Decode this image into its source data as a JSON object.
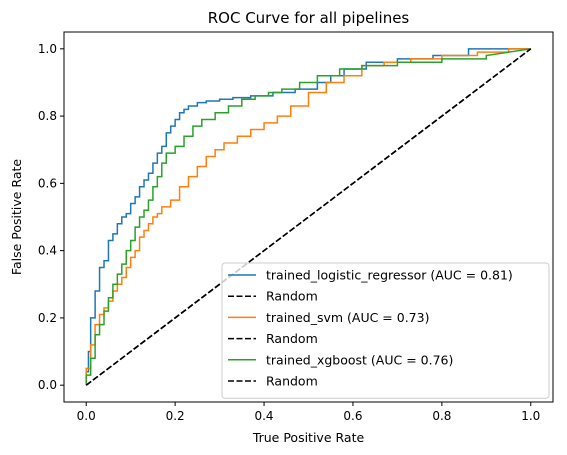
{
  "chart_data": {
    "type": "line",
    "title": "ROC Curve for all pipelines",
    "xlabel": "True Positive Rate",
    "ylabel": "False Positive Rate",
    "xlim": [
      -0.05,
      1.05
    ],
    "ylim": [
      -0.05,
      1.05
    ],
    "xticks": [
      "0.0",
      "0.2",
      "0.4",
      "0.6",
      "0.8",
      "1.0"
    ],
    "yticks": [
      "0.0",
      "0.2",
      "0.4",
      "0.6",
      "0.8",
      "1.0"
    ],
    "grid": false,
    "legend_position": "lower-right",
    "series": [
      {
        "name": "trained_logistic_regressor (AUC =  0.81)",
        "color": "#1f77b4",
        "style": "solid",
        "x": [
          0.0,
          0.0,
          0.005,
          0.005,
          0.01,
          0.01,
          0.02,
          0.02,
          0.03,
          0.03,
          0.04,
          0.04,
          0.05,
          0.05,
          0.06,
          0.06,
          0.07,
          0.07,
          0.08,
          0.08,
          0.09,
          0.09,
          0.1,
          0.1,
          0.11,
          0.11,
          0.12,
          0.12,
          0.13,
          0.13,
          0.14,
          0.14,
          0.15,
          0.15,
          0.16,
          0.16,
          0.17,
          0.17,
          0.18,
          0.18,
          0.19,
          0.19,
          0.2,
          0.2,
          0.21,
          0.21,
          0.22,
          0.22,
          0.23,
          0.23,
          0.25,
          0.25,
          0.27,
          0.27,
          0.3,
          0.3,
          0.33,
          0.33,
          0.37,
          0.37,
          0.42,
          0.42,
          0.47,
          0.47,
          0.52,
          0.52,
          0.55,
          0.55,
          0.58,
          0.58,
          0.63,
          0.63,
          0.7,
          0.7,
          0.78,
          0.78,
          0.86,
          0.86,
          0.92,
          0.92,
          1.0
        ],
        "y": [
          0.0,
          0.04,
          0.04,
          0.1,
          0.1,
          0.2,
          0.2,
          0.28,
          0.28,
          0.35,
          0.35,
          0.37,
          0.37,
          0.43,
          0.43,
          0.45,
          0.45,
          0.48,
          0.48,
          0.5,
          0.5,
          0.51,
          0.51,
          0.54,
          0.54,
          0.56,
          0.56,
          0.59,
          0.59,
          0.61,
          0.61,
          0.63,
          0.63,
          0.66,
          0.66,
          0.69,
          0.69,
          0.71,
          0.71,
          0.75,
          0.75,
          0.77,
          0.77,
          0.79,
          0.79,
          0.81,
          0.81,
          0.82,
          0.82,
          0.83,
          0.83,
          0.84,
          0.84,
          0.845,
          0.845,
          0.85,
          0.85,
          0.855,
          0.855,
          0.86,
          0.86,
          0.87,
          0.87,
          0.88,
          0.88,
          0.9,
          0.9,
          0.92,
          0.92,
          0.94,
          0.94,
          0.96,
          0.96,
          0.97,
          0.97,
          0.98,
          0.98,
          1.0,
          1.0,
          1.0,
          1.0
        ]
      },
      {
        "name": "Random",
        "color": "#000000",
        "style": "dashed",
        "x": [
          0,
          1
        ],
        "y": [
          0,
          1
        ]
      },
      {
        "name": "trained_svm (AUC =  0.73)",
        "color": "#ff7f0e",
        "style": "solid",
        "x": [
          0.0,
          0.0,
          0.01,
          0.01,
          0.02,
          0.02,
          0.03,
          0.03,
          0.04,
          0.04,
          0.05,
          0.05,
          0.06,
          0.06,
          0.07,
          0.07,
          0.08,
          0.08,
          0.09,
          0.09,
          0.1,
          0.1,
          0.11,
          0.11,
          0.12,
          0.12,
          0.13,
          0.13,
          0.14,
          0.14,
          0.15,
          0.15,
          0.16,
          0.16,
          0.17,
          0.17,
          0.19,
          0.19,
          0.21,
          0.21,
          0.23,
          0.23,
          0.25,
          0.25,
          0.27,
          0.27,
          0.29,
          0.29,
          0.31,
          0.31,
          0.34,
          0.34,
          0.37,
          0.37,
          0.4,
          0.4,
          0.43,
          0.43,
          0.46,
          0.46,
          0.5,
          0.5,
          0.54,
          0.54,
          0.58,
          0.58,
          0.62,
          0.62,
          0.67,
          0.67,
          0.73,
          0.73,
          0.8,
          0.8,
          0.88,
          0.88,
          0.95,
          0.95,
          1.0
        ],
        "y": [
          0.0,
          0.05,
          0.05,
          0.12,
          0.12,
          0.18,
          0.18,
          0.21,
          0.21,
          0.23,
          0.23,
          0.25,
          0.25,
          0.28,
          0.28,
          0.3,
          0.3,
          0.32,
          0.32,
          0.35,
          0.35,
          0.38,
          0.38,
          0.4,
          0.4,
          0.44,
          0.44,
          0.46,
          0.46,
          0.48,
          0.48,
          0.5,
          0.5,
          0.51,
          0.51,
          0.53,
          0.53,
          0.55,
          0.55,
          0.59,
          0.59,
          0.62,
          0.62,
          0.65,
          0.65,
          0.68,
          0.68,
          0.7,
          0.7,
          0.72,
          0.72,
          0.74,
          0.74,
          0.76,
          0.76,
          0.78,
          0.78,
          0.8,
          0.8,
          0.83,
          0.83,
          0.87,
          0.87,
          0.9,
          0.9,
          0.92,
          0.92,
          0.95,
          0.95,
          0.96,
          0.96,
          0.97,
          0.97,
          0.98,
          0.98,
          0.99,
          0.99,
          1.0,
          1.0
        ]
      },
      {
        "name": "Random",
        "color": "#000000",
        "style": "dashed",
        "x": [
          0,
          1
        ],
        "y": [
          0,
          1
        ]
      },
      {
        "name": "trained_xgboost (AUC =  0.76)",
        "color": "#2ca02c",
        "style": "solid",
        "x": [
          0.0,
          0.0,
          0.01,
          0.01,
          0.02,
          0.02,
          0.03,
          0.03,
          0.04,
          0.04,
          0.05,
          0.05,
          0.06,
          0.06,
          0.07,
          0.07,
          0.08,
          0.08,
          0.09,
          0.09,
          0.1,
          0.1,
          0.11,
          0.11,
          0.12,
          0.12,
          0.13,
          0.13,
          0.14,
          0.14,
          0.15,
          0.15,
          0.16,
          0.16,
          0.17,
          0.17,
          0.18,
          0.18,
          0.2,
          0.2,
          0.22,
          0.22,
          0.24,
          0.24,
          0.26,
          0.26,
          0.29,
          0.29,
          0.32,
          0.32,
          0.35,
          0.35,
          0.38,
          0.38,
          0.41,
          0.41,
          0.44,
          0.44,
          0.48,
          0.48,
          0.52,
          0.52,
          0.57,
          0.57,
          0.62,
          0.62,
          0.7,
          0.7,
          0.8,
          0.8,
          0.9,
          0.9,
          1.0
        ],
        "y": [
          0.0,
          0.03,
          0.03,
          0.08,
          0.08,
          0.15,
          0.15,
          0.18,
          0.18,
          0.22,
          0.22,
          0.26,
          0.26,
          0.3,
          0.3,
          0.33,
          0.33,
          0.36,
          0.36,
          0.4,
          0.4,
          0.43,
          0.43,
          0.47,
          0.47,
          0.5,
          0.5,
          0.52,
          0.52,
          0.55,
          0.55,
          0.59,
          0.59,
          0.62,
          0.62,
          0.66,
          0.66,
          0.69,
          0.69,
          0.71,
          0.71,
          0.74,
          0.74,
          0.77,
          0.77,
          0.79,
          0.79,
          0.81,
          0.81,
          0.83,
          0.83,
          0.85,
          0.85,
          0.86,
          0.86,
          0.87,
          0.87,
          0.88,
          0.88,
          0.9,
          0.9,
          0.92,
          0.92,
          0.94,
          0.94,
          0.95,
          0.95,
          0.96,
          0.96,
          0.97,
          0.97,
          0.98,
          1.0
        ]
      },
      {
        "name": "Random",
        "color": "#000000",
        "style": "dashed",
        "x": [
          0,
          1
        ],
        "y": [
          0,
          1
        ]
      }
    ]
  }
}
